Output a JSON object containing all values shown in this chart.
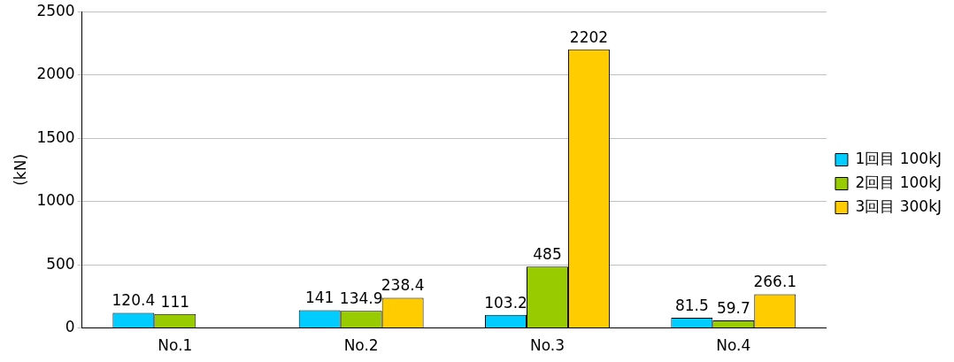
{
  "chart_data": {
    "type": "bar",
    "ylabel": "(kN)",
    "categories": [
      "No.1",
      "No.2",
      "No.3",
      "No.4"
    ],
    "series": [
      {
        "name": "1回目 100kJ",
        "color": "#00ccff",
        "values": [
          120.4,
          141,
          103.2,
          81.5
        ]
      },
      {
        "name": "2回目 100kJ",
        "color": "#99cc00",
        "values": [
          111,
          134.9,
          485,
          59.7
        ]
      },
      {
        "name": "3回目 300kJ",
        "color": "#ffcc00",
        "values": [
          null,
          238.4,
          2202,
          266.1
        ]
      }
    ],
    "ylim": [
      0,
      2500
    ],
    "yticks": [
      0,
      500,
      1000,
      1500,
      2000,
      2500
    ],
    "grid": "y",
    "legend": "right",
    "data_labels": true
  }
}
